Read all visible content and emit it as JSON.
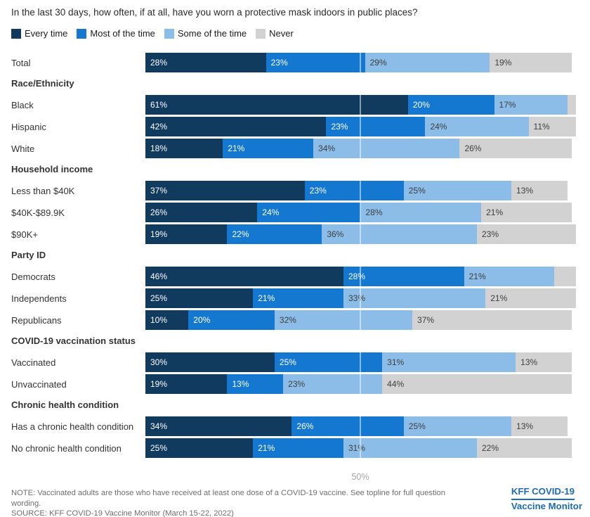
{
  "chart_data": {
    "type": "bar",
    "subtype": "stacked-horizontal",
    "title": "In the last 30 days, how often, if at all, have you worn a protective mask indoors in public places?",
    "series_names": [
      "Every time",
      "Most of the time",
      "Some of the time",
      "Never"
    ],
    "xlim": [
      0,
      100
    ],
    "grid": "single vertical line at 50%",
    "legend_position": "top-left",
    "x_tick": {
      "value": 50,
      "label": "50%"
    },
    "palette": [
      "#113A5F",
      "#1478D1",
      "#8BBDE8",
      "#D2D2D2"
    ],
    "value_label_colors": [
      "#FFFFFF",
      "#FFFFFF",
      "#3E3E3E",
      "#3E3E3E"
    ],
    "groups": [
      {
        "header": "",
        "rows": [
          {
            "label": "Total",
            "values": [
              28,
              23,
              29,
              19
            ],
            "labels": [
              "28%",
              "23%",
              "29%",
              "19%"
            ]
          }
        ]
      },
      {
        "header": "Race/Ethnicity",
        "rows": [
          {
            "label": "Black",
            "values": [
              61,
              20,
              17,
              2
            ],
            "labels": [
              "61%",
              "20%",
              "17%",
              ""
            ]
          },
          {
            "label": "Hispanic",
            "values": [
              42,
              23,
              24,
              11
            ],
            "labels": [
              "42%",
              "23%",
              "24%",
              "11%"
            ]
          },
          {
            "label": "White",
            "values": [
              18,
              21,
              34,
              26
            ],
            "labels": [
              "18%",
              "21%",
              "34%",
              "26%"
            ]
          }
        ]
      },
      {
        "header": "Household income",
        "rows": [
          {
            "label": "Less than $40K",
            "values": [
              37,
              23,
              25,
              13
            ],
            "labels": [
              "37%",
              "23%",
              "25%",
              "13%"
            ]
          },
          {
            "label": "$40K-$89.9K",
            "values": [
              26,
              24,
              28,
              21
            ],
            "labels": [
              "26%",
              "24%",
              "28%",
              "21%"
            ]
          },
          {
            "label": "$90K+",
            "values": [
              19,
              22,
              36,
              23
            ],
            "labels": [
              "19%",
              "22%",
              "36%",
              "23%"
            ]
          }
        ]
      },
      {
        "header": "Party ID",
        "rows": [
          {
            "label": "Democrats",
            "values": [
              46,
              28,
              21,
              5
            ],
            "labels": [
              "46%",
              "28%",
              "21%",
              ""
            ]
          },
          {
            "label": "Independents",
            "values": [
              25,
              21,
              33,
              21
            ],
            "labels": [
              "25%",
              "21%",
              "33%",
              "21%"
            ]
          },
          {
            "label": "Republicans",
            "values": [
              10,
              20,
              32,
              37
            ],
            "labels": [
              "10%",
              "20%",
              "32%",
              "37%"
            ]
          }
        ]
      },
      {
        "header": "COVID-19 vaccination status",
        "rows": [
          {
            "label": "Vaccinated",
            "values": [
              30,
              25,
              31,
              13
            ],
            "labels": [
              "30%",
              "25%",
              "31%",
              "13%"
            ]
          },
          {
            "label": "Unvaccinated",
            "values": [
              19,
              13,
              23,
              44
            ],
            "labels": [
              "19%",
              "13%",
              "23%",
              "44%"
            ]
          }
        ]
      },
      {
        "header": "Chronic health condition",
        "rows": [
          {
            "label": "Has a chronic health condition",
            "values": [
              34,
              26,
              25,
              13
            ],
            "labels": [
              "34%",
              "26%",
              "25%",
              "13%"
            ]
          },
          {
            "label": "No chronic health condition",
            "values": [
              25,
              21,
              31,
              22
            ],
            "labels": [
              "25%",
              "21%",
              "31%",
              "22%"
            ]
          }
        ]
      }
    ]
  },
  "footer": {
    "note": "NOTE: Vaccinated adults are those who have received at least one dose of a COVID-19 vaccine. See topline for full question wording.",
    "source": "SOURCE: KFF COVID-19 Vaccine Monitor (March 15-22, 2022)",
    "logo_line1": "KFF COVID-19",
    "logo_line2": "Vaccine Monitor",
    "logo_color": "#1E6AB4"
  }
}
